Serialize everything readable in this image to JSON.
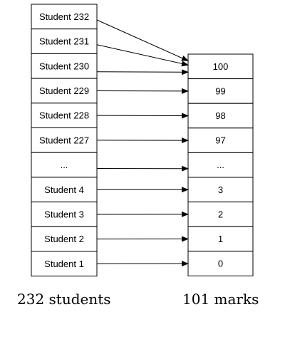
{
  "students": [
    "Student 232",
    "Student 231",
    "Student 230",
    "Student 229",
    "Student 228",
    "Student 227",
    "...",
    "Student 4",
    "Student 3",
    "Student 2",
    "Student 1"
  ],
  "marks": [
    "100",
    "99",
    "98",
    "97",
    "...",
    "3",
    "2",
    "1",
    "0"
  ],
  "captions": {
    "students": "232 students",
    "marks": "101 marks"
  },
  "links": [
    {
      "from": "Student 232",
      "to": "100"
    },
    {
      "from": "Student 231",
      "to": "100"
    },
    {
      "from": "Student 230",
      "to": "100"
    },
    {
      "from": "Student 229",
      "to": "99"
    },
    {
      "from": "Student 228",
      "to": "98"
    },
    {
      "from": "Student 227",
      "to": "97"
    },
    {
      "from": "...",
      "to": "..."
    },
    {
      "from": "Student 4",
      "to": "3"
    },
    {
      "from": "Student 3",
      "to": "2"
    },
    {
      "from": "Student 2",
      "to": "1"
    },
    {
      "from": "Student 1",
      "to": "0"
    }
  ]
}
